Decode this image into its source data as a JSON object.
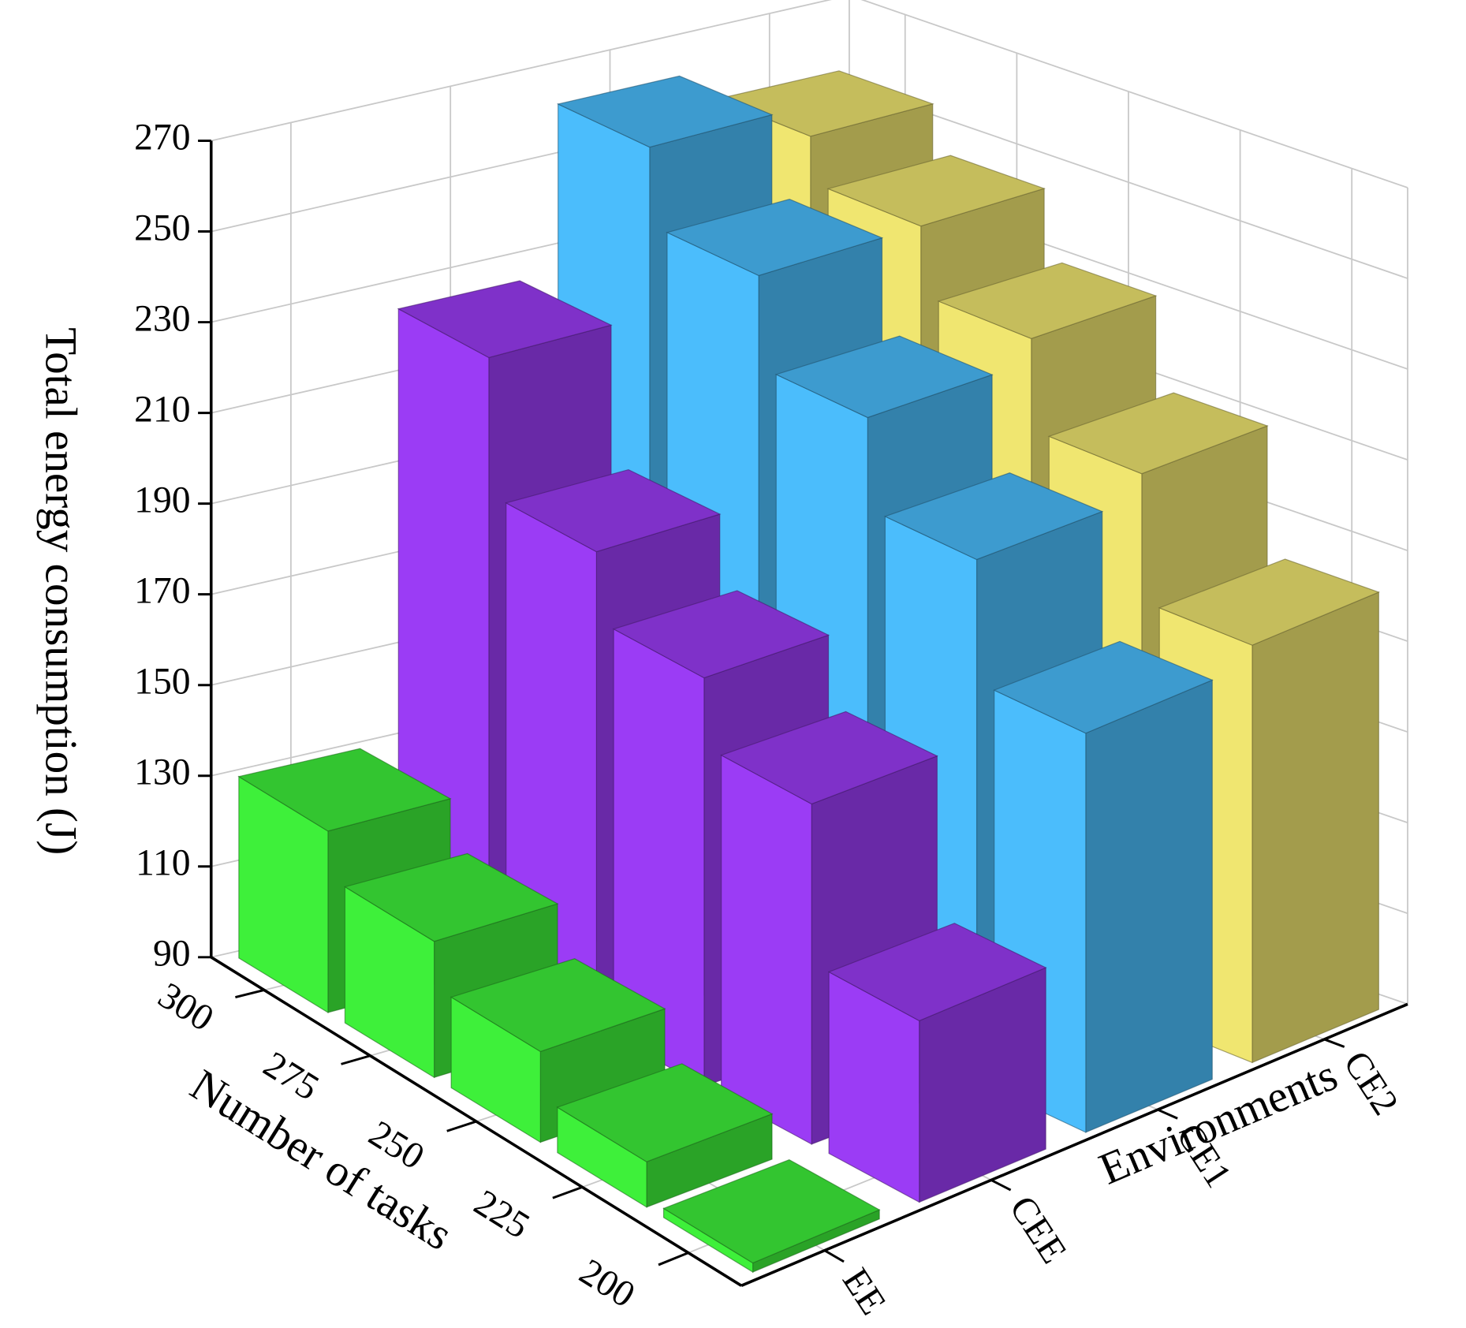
{
  "chart_data": {
    "type": "bar3d",
    "z_label": "Total energy consumption (J)",
    "x_label": "Number of tasks",
    "y_label": "Environments",
    "categories": [
      "300",
      "275",
      "250",
      "225",
      "200"
    ],
    "series": [
      {
        "name": "EE",
        "color": "#3ef03a",
        "values": [
          130,
          120,
          110,
          100,
          92
        ]
      },
      {
        "name": "CEE",
        "color": "#9b3cf5",
        "values": [
          225,
          195,
          180,
          165,
          130
        ]
      },
      {
        "name": "CE1",
        "color": "#4bbdfc",
        "values": [
          262,
          245,
          225,
          205,
          178
        ]
      },
      {
        "name": "CE2",
        "color": "#f0e670",
        "values": [
          255,
          245,
          230,
          210,
          182
        ]
      }
    ],
    "zlim": [
      90,
      270
    ],
    "zticks": [
      90,
      110,
      130,
      150,
      170,
      190,
      210,
      230,
      250,
      270
    ],
    "grid": true
  }
}
